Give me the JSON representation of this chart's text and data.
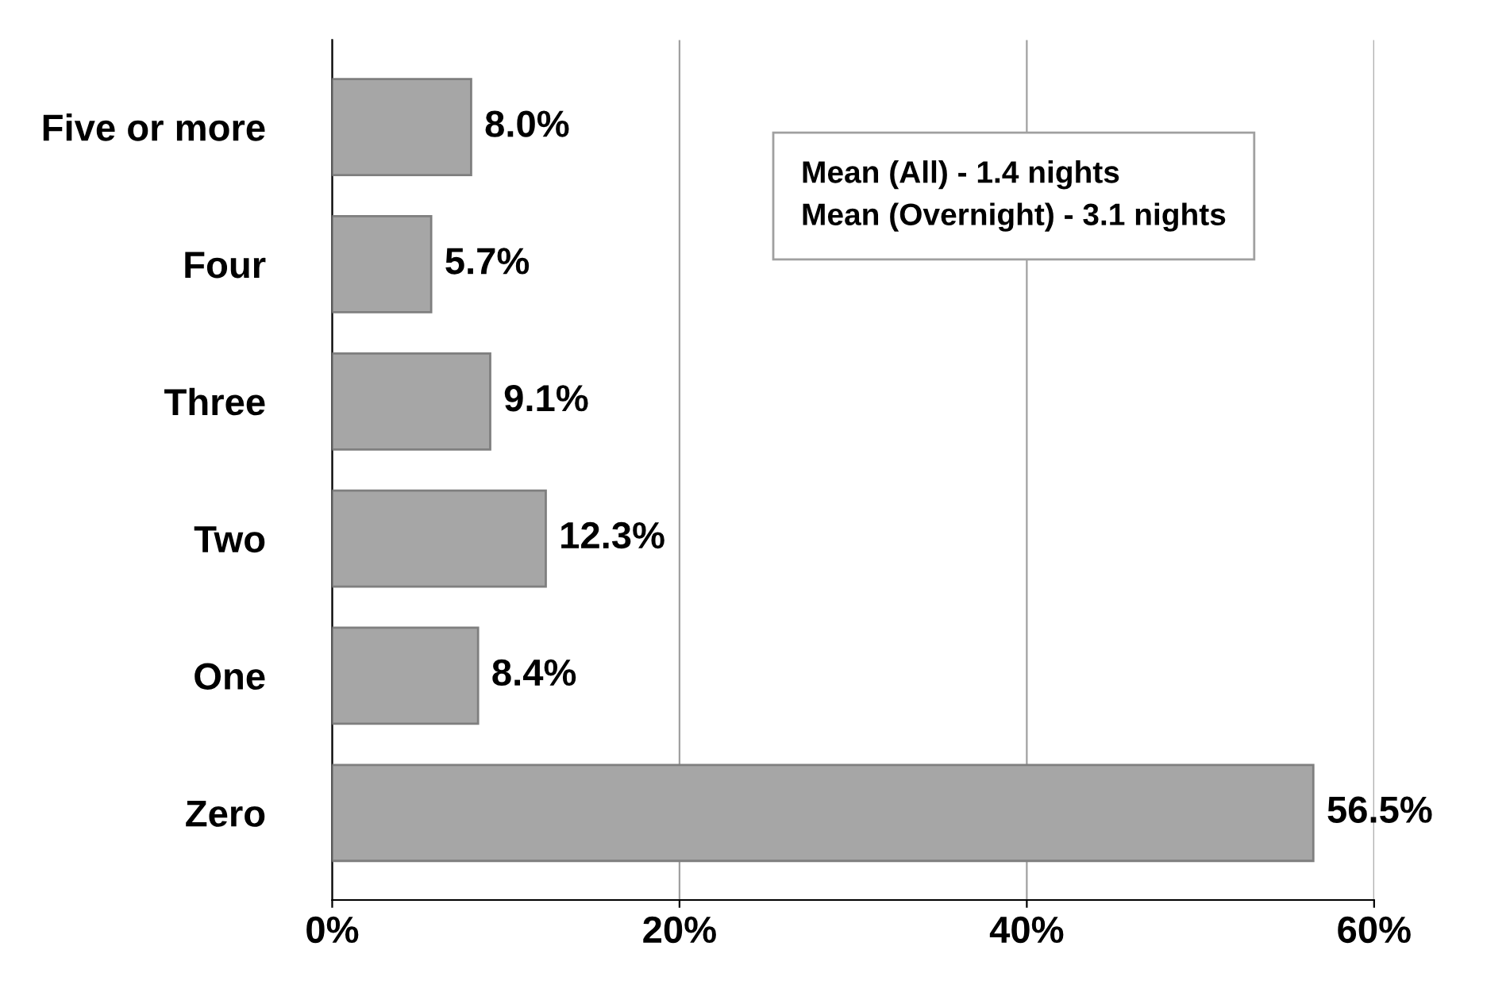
{
  "chart_data": {
    "type": "bar",
    "orientation": "horizontal",
    "categories": [
      "Five or more",
      "Four",
      "Three",
      "Two",
      "One",
      "Zero"
    ],
    "values": [
      8.0,
      5.7,
      9.1,
      12.3,
      8.4,
      56.5
    ],
    "value_labels": [
      "8.0%",
      "5.7%",
      "9.1%",
      "12.3%",
      "8.4%",
      "56.5%"
    ],
    "color": "#a6a6a6",
    "xlim": [
      0,
      60
    ],
    "xticks": [
      {
        "value": 0,
        "label": "0%"
      },
      {
        "value": 20,
        "label": "20%"
      },
      {
        "value": 40,
        "label": "40%"
      },
      {
        "value": 60,
        "label": "60%"
      }
    ],
    "grid": "x",
    "annotations": [
      "Mean (All) - 1.4 nights",
      "Mean (Overnight) - 3.1 nights"
    ]
  }
}
